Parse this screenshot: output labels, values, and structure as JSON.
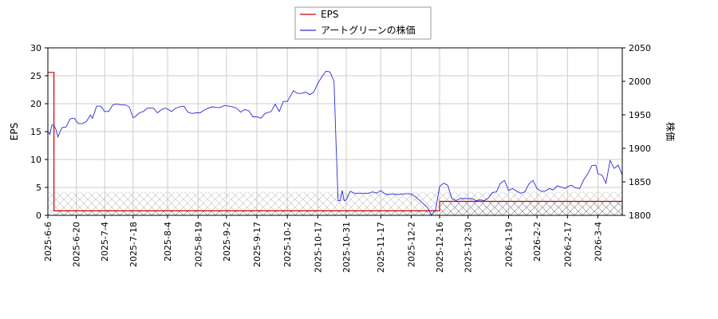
{
  "chart_data": {
    "type": "line",
    "title": "",
    "grid": true,
    "legend": {
      "placement": "top-center",
      "entries": [
        "EPS",
        "アートグリーンの株価"
      ]
    },
    "colors": {
      "eps": "#cc0000",
      "price": "#2b2bd6",
      "grid": "#cccccc",
      "hatch": "#888888"
    },
    "x_ticks": [
      "2025-6-6",
      "2025-6-20",
      "2025-7-4",
      "2025-7-18",
      "2025-8-4",
      "2025-8-19",
      "2025-9-2",
      "2025-9-17",
      "2025-10-2",
      "2025-10-17",
      "2025-10-31",
      "2025-11-17",
      "2025-12-2",
      "2025-12-16",
      "2025-12-30",
      "2026-1-19",
      "2026-2-2",
      "2026-2-17",
      "2026-3-4"
    ],
    "x_range": [
      "2025-6-6",
      "2026-3-16"
    ],
    "y_left": {
      "label": "EPS",
      "ylim": [
        0,
        30
      ],
      "ticks": [
        0,
        5,
        10,
        15,
        20,
        25,
        30
      ]
    },
    "y_right": {
      "label": "株価",
      "ylim": [
        1800,
        2050
      ],
      "ticks": [
        1800,
        1850,
        1900,
        1950,
        2000,
        2050
      ]
    },
    "series": [
      {
        "name": "EPS",
        "axis": "left",
        "step": true,
        "points": [
          [
            "2025-6-6",
            25.6
          ],
          [
            "2025-6-9",
            25.6
          ],
          [
            "2025-6-9",
            0.8
          ],
          [
            "2025-12-16",
            0.8
          ],
          [
            "2025-12-16",
            2.5
          ],
          [
            "2026-3-16",
            2.5
          ]
        ]
      },
      {
        "name": "アートグリーンの株価",
        "axis": "right",
        "points": [
          [
            "2025-6-6",
            1925
          ],
          [
            "2025-6-7",
            1921
          ],
          [
            "2025-6-8",
            1935
          ],
          [
            "2025-6-9",
            1934
          ],
          [
            "2025-6-10",
            1928
          ],
          [
            "2025-6-11",
            1917
          ],
          [
            "2025-6-12",
            1925
          ],
          [
            "2025-6-13",
            1931
          ],
          [
            "2025-6-15",
            1932
          ],
          [
            "2025-6-17",
            1944
          ],
          [
            "2025-6-19",
            1945
          ],
          [
            "2025-6-21",
            1937
          ],
          [
            "2025-6-23",
            1937
          ],
          [
            "2025-6-25",
            1940
          ],
          [
            "2025-6-27",
            1950
          ],
          [
            "2025-6-28",
            1945
          ],
          [
            "2025-6-30",
            1963
          ],
          [
            "2025-7-2",
            1963
          ],
          [
            "2025-7-4",
            1955
          ],
          [
            "2025-7-6",
            1955
          ],
          [
            "2025-7-8",
            1965
          ],
          [
            "2025-7-10",
            1966
          ],
          [
            "2025-7-12",
            1965
          ],
          [
            "2025-7-14",
            1965
          ],
          [
            "2025-7-16",
            1962
          ],
          [
            "2025-7-18",
            1946
          ],
          [
            "2025-7-19",
            1947
          ],
          [
            "2025-7-21",
            1953
          ],
          [
            "2025-7-23",
            1955
          ],
          [
            "2025-7-25",
            1960
          ],
          [
            "2025-7-28",
            1960
          ],
          [
            "2025-7-30",
            1953
          ],
          [
            "2025-8-1",
            1958
          ],
          [
            "2025-8-3",
            1960
          ],
          [
            "2025-8-6",
            1955
          ],
          [
            "2025-8-8",
            1960
          ],
          [
            "2025-8-10",
            1962
          ],
          [
            "2025-8-12",
            1963
          ],
          [
            "2025-8-14",
            1954
          ],
          [
            "2025-8-16",
            1952
          ],
          [
            "2025-8-18",
            1953
          ],
          [
            "2025-8-20",
            1953
          ],
          [
            "2025-8-22",
            1957
          ],
          [
            "2025-8-24",
            1960
          ],
          [
            "2025-8-26",
            1962
          ],
          [
            "2025-8-28",
            1961
          ],
          [
            "2025-8-30",
            1961
          ],
          [
            "2025-9-1",
            1964
          ],
          [
            "2025-9-3",
            1963
          ],
          [
            "2025-9-5",
            1962
          ],
          [
            "2025-9-7",
            1960
          ],
          [
            "2025-9-9",
            1954
          ],
          [
            "2025-9-11",
            1958
          ],
          [
            "2025-9-13",
            1956
          ],
          [
            "2025-9-15",
            1947
          ],
          [
            "2025-9-17",
            1947
          ],
          [
            "2025-9-19",
            1945
          ],
          [
            "2025-9-21",
            1952
          ],
          [
            "2025-9-24",
            1955
          ],
          [
            "2025-9-26",
            1966
          ],
          [
            "2025-9-28",
            1955
          ],
          [
            "2025-9-30",
            1970
          ],
          [
            "2025-10-2",
            1970
          ],
          [
            "2025-10-5",
            1986
          ],
          [
            "2025-10-7",
            1982
          ],
          [
            "2025-10-9",
            1982
          ],
          [
            "2025-10-11",
            1984
          ],
          [
            "2025-10-13",
            1980
          ],
          [
            "2025-10-15",
            1984
          ],
          [
            "2025-10-17",
            1997
          ],
          [
            "2025-10-19",
            2007
          ],
          [
            "2025-10-21",
            2015
          ],
          [
            "2025-10-23",
            2014
          ],
          [
            "2025-10-25",
            2000
          ],
          [
            "2025-10-26",
            1905
          ],
          [
            "2025-10-27",
            1822
          ],
          [
            "2025-10-28",
            1822
          ],
          [
            "2025-10-29",
            1837
          ],
          [
            "2025-10-30",
            1822
          ],
          [
            "2025-10-31",
            1823
          ],
          [
            "2025-11-2",
            1836
          ],
          [
            "2025-11-4",
            1833
          ],
          [
            "2025-11-6",
            1833
          ],
          [
            "2025-11-8",
            1833
          ],
          [
            "2025-11-11",
            1833
          ],
          [
            "2025-11-13",
            1835
          ],
          [
            "2025-11-15",
            1833
          ],
          [
            "2025-11-17",
            1837
          ],
          [
            "2025-11-19",
            1832
          ],
          [
            "2025-11-21",
            1831
          ],
          [
            "2025-11-23",
            1832
          ],
          [
            "2025-11-25",
            1831
          ],
          [
            "2025-11-28",
            1832
          ],
          [
            "2025-11-30",
            1832
          ],
          [
            "2025-12-2",
            1832
          ],
          [
            "2025-12-4",
            1828
          ],
          [
            "2025-12-6",
            1823
          ],
          [
            "2025-12-8",
            1817
          ],
          [
            "2025-12-10",
            1812
          ],
          [
            "2025-12-12",
            1800
          ],
          [
            "2025-12-14",
            1808
          ],
          [
            "2025-12-16",
            1843
          ],
          [
            "2025-12-18",
            1848
          ],
          [
            "2025-12-20",
            1845
          ],
          [
            "2025-12-22",
            1825
          ],
          [
            "2025-12-24",
            1822
          ],
          [
            "2025-12-26",
            1825
          ],
          [
            "2025-12-28",
            1825
          ],
          [
            "2025-12-30",
            1825
          ],
          [
            "2026-1-1",
            1825
          ],
          [
            "2026-1-3",
            1822
          ],
          [
            "2026-1-5",
            1823
          ],
          [
            "2026-1-7",
            1822
          ],
          [
            "2026-1-9",
            1826
          ],
          [
            "2026-1-11",
            1834
          ],
          [
            "2026-1-13",
            1835
          ],
          [
            "2026-1-15",
            1848
          ],
          [
            "2026-1-17",
            1852
          ],
          [
            "2026-1-19",
            1837
          ],
          [
            "2026-1-21",
            1840
          ],
          [
            "2026-1-23",
            1836
          ],
          [
            "2026-1-25",
            1833
          ],
          [
            "2026-1-27",
            1835
          ],
          [
            "2026-1-29",
            1847
          ],
          [
            "2026-1-31",
            1852
          ],
          [
            "2026-2-2",
            1840
          ],
          [
            "2026-2-4",
            1836
          ],
          [
            "2026-2-6",
            1836
          ],
          [
            "2026-2-8",
            1840
          ],
          [
            "2026-2-10",
            1838
          ],
          [
            "2026-2-12",
            1844
          ],
          [
            "2026-2-14",
            1842
          ],
          [
            "2026-2-16",
            1840
          ],
          [
            "2026-2-17",
            1843
          ],
          [
            "2026-2-19",
            1845
          ],
          [
            "2026-2-21",
            1841
          ],
          [
            "2026-2-23",
            1840
          ],
          [
            "2026-2-25",
            1853
          ],
          [
            "2026-2-27",
            1862
          ],
          [
            "2026-3-1",
            1874
          ],
          [
            "2026-3-3",
            1875
          ],
          [
            "2026-3-4",
            1862
          ],
          [
            "2026-3-6",
            1860
          ],
          [
            "2026-3-8",
            1848
          ],
          [
            "2026-3-10",
            1882
          ],
          [
            "2026-3-12",
            1870
          ],
          [
            "2026-3-14",
            1875
          ],
          [
            "2026-3-16",
            1860
          ]
        ]
      }
    ]
  }
}
